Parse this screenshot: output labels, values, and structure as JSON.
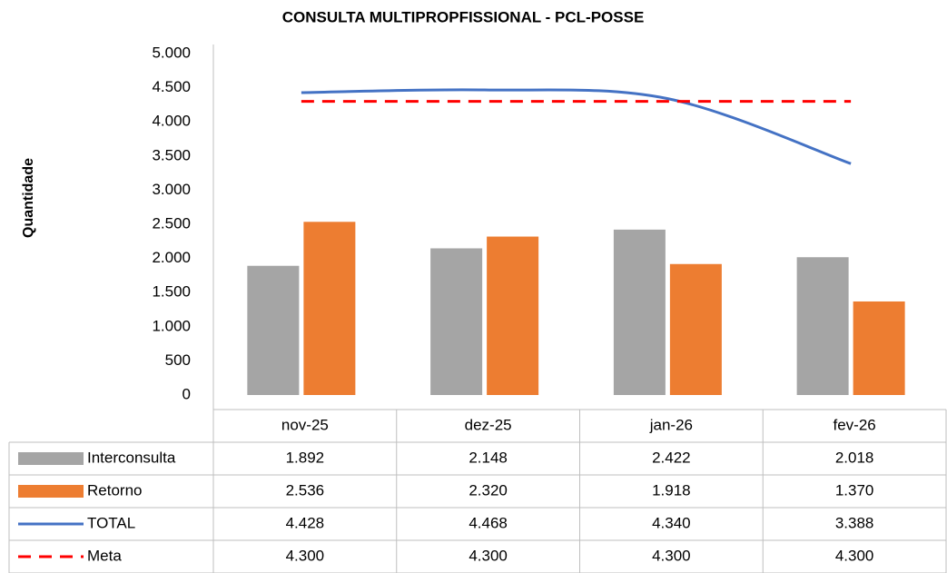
{
  "chart_data": {
    "type": "bar",
    "title": "CONSULTA MULTIPROPFISSIONAL - PCL-POSSE",
    "ylabel": "Quantidade",
    "categories": [
      "nov-25",
      "dez-25",
      "jan-26",
      "fev-26"
    ],
    "series": [
      {
        "name": "Interconsulta",
        "type": "bar",
        "color": "#a5a5a5",
        "values": [
          1892,
          2148,
          2422,
          2018
        ],
        "value_labels": [
          "1.892",
          "2.148",
          "2.422",
          "2.018"
        ]
      },
      {
        "name": "Retorno",
        "type": "bar",
        "color": "#ed7d31",
        "values": [
          2536,
          2320,
          1918,
          1370
        ],
        "value_labels": [
          "2.536",
          "2.320",
          "1.918",
          "1.370"
        ]
      },
      {
        "name": "TOTAL",
        "type": "line",
        "color": "#4472c4",
        "smooth": true,
        "values": [
          4428,
          4468,
          4340,
          3388
        ],
        "value_labels": [
          "4.428",
          "4.468",
          "4.340",
          "3.388"
        ]
      },
      {
        "name": "Meta",
        "type": "line",
        "color": "#ff0000",
        "dashed": true,
        "values": [
          4300,
          4300,
          4300,
          4300
        ],
        "value_labels": [
          "4.300",
          "4.300",
          "4.300",
          "4.300"
        ]
      }
    ],
    "ylim": [
      0,
      5000
    ],
    "yticks": [
      0,
      {
        "value": 500,
        "label": "500"
      },
      {
        "value": 1000,
        "label": "1.000"
      },
      {
        "value": 1500,
        "label": "1.500"
      },
      {
        "value": 2000,
        "label": "2.000"
      },
      {
        "value": 2500,
        "label": "2.500"
      },
      {
        "value": 3000,
        "label": "3.000"
      },
      {
        "value": 3500,
        "label": "3.500"
      },
      {
        "value": 4000,
        "label": "4.000"
      },
      {
        "value": 4500,
        "label": "4.500"
      },
      {
        "value": 5000,
        "label": "5.000"
      }
    ],
    "grid": false
  }
}
